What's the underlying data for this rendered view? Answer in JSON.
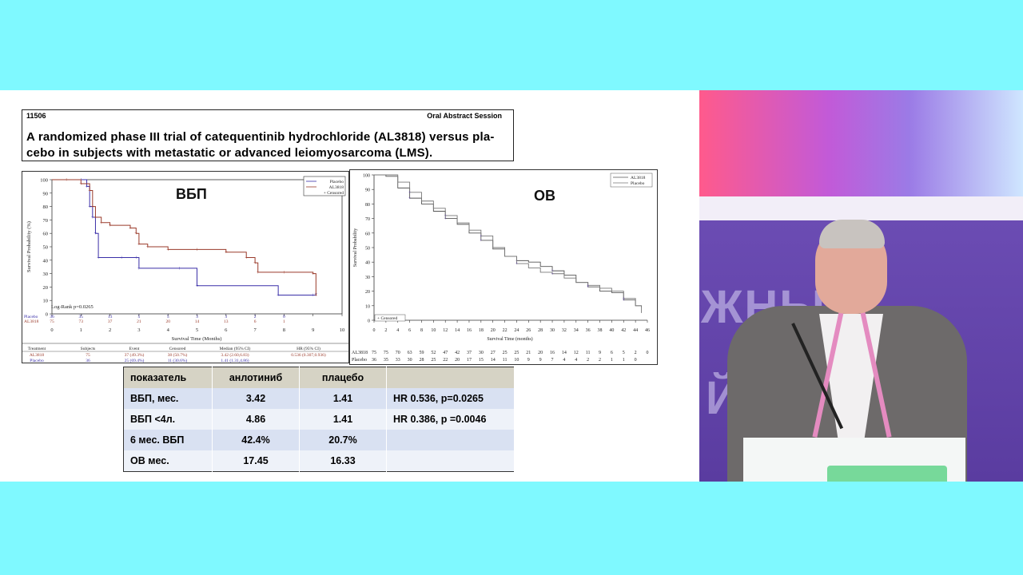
{
  "abstract": {
    "number": "11506",
    "session": "Oral Abstract Session",
    "title": "A randomized phase III trial of catequentinib hydrochloride (AL3818) versus pla-cebo in subjects with metastatic or advanced leiomyosarcoma (LMS)."
  },
  "pfs_panel": {
    "label": "ВБП",
    "legend": [
      "Placebo",
      "AL3818",
      "+ Censored"
    ],
    "logrank": "Log-Rank p=0.0265",
    "xlabel": "Survival Time (Months)",
    "ylabel": "Survival Probability (%)",
    "risk_rows": [
      {
        "name": "Placebo",
        "values": [
          "36",
          "35",
          "13",
          "5",
          "5",
          "3",
          "3",
          "2",
          "0"
        ]
      },
      {
        "name": "AL3818",
        "values": [
          "75",
          "73",
          "37",
          "21",
          "20",
          "14",
          "13",
          "6",
          "1"
        ]
      }
    ],
    "summary_headers": [
      "Treatment",
      "Subjects",
      "Event",
      "Censored",
      "Median (95% CI)",
      "HR (95% CI)"
    ],
    "summary_rows": [
      [
        "AL3818",
        "75",
        "37 (49.3%)",
        "38 (50.7%)",
        "3.42 (2.60,6.83)",
        "0.536 (0.307,0.936)"
      ],
      [
        "Placebo",
        "36",
        "25 (69.4%)",
        "11 (30.6%)",
        "1.41 (1.31,4.86)",
        ""
      ]
    ]
  },
  "os_panel": {
    "label": "ОВ",
    "legend": [
      "AL3818",
      "Placebo"
    ],
    "censored_label": "+ Censored",
    "xlabel": "Survival Time (months)",
    "ylabel": "Survival Probability",
    "risk_rows": [
      {
        "name": "AL3818",
        "values": [
          "75",
          "75",
          "70",
          "63",
          "59",
          "52",
          "47",
          "42",
          "37",
          "30",
          "27",
          "25",
          "25",
          "21",
          "20",
          "16",
          "14",
          "12",
          "11",
          "9",
          "6",
          "5",
          "2",
          "0"
        ]
      },
      {
        "name": "Placebo",
        "values": [
          "36",
          "35",
          "33",
          "30",
          "28",
          "25",
          "22",
          "20",
          "17",
          "15",
          "14",
          "11",
          "10",
          "9",
          "9",
          "7",
          "4",
          "4",
          "2",
          "2",
          "1",
          "1",
          "0"
        ]
      }
    ]
  },
  "table": {
    "headers": [
      "показатель",
      "анлотиниб",
      "плацебо",
      ""
    ],
    "rows": [
      [
        "ВБП, мес.",
        "3.42",
        "1.41",
        "HR 0.536, p=0.0265"
      ],
      [
        "ВБП <4л.",
        "4.86",
        "1.41",
        "HR 0.386, p =0.0046"
      ],
      [
        "6 мес. ВБП",
        "42.4%",
        "20.7%",
        ""
      ],
      [
        "ОВ мес.",
        "17.45",
        "16.33",
        ""
      ]
    ]
  },
  "stage": {
    "text1": "ЖНЫ",
    "text2": "Й"
  },
  "chart_data": [
    {
      "type": "line",
      "title": "ВБП",
      "xlabel": "Survival Time (Months)",
      "ylabel": "Survival Probability (%)",
      "xlim": [
        0,
        10
      ],
      "ylim": [
        0,
        100
      ],
      "x_ticks": [
        0,
        1,
        2,
        3,
        4,
        5,
        6,
        7,
        8,
        9,
        10
      ],
      "y_ticks": [
        0,
        10,
        20,
        30,
        40,
        50,
        60,
        70,
        80,
        90,
        100
      ],
      "series": [
        {
          "name": "Placebo",
          "color": "#3a2fa8",
          "x": [
            0,
            1.0,
            1.2,
            1.3,
            1.4,
            1.5,
            1.6,
            2.4,
            2.9,
            3.0,
            4.4,
            5.0,
            7.8,
            9.0,
            9.1
          ],
          "y": [
            100,
            100,
            95,
            80,
            72,
            60,
            42,
            42,
            42,
            34,
            34,
            21,
            14,
            14,
            15
          ]
        },
        {
          "name": "AL3818",
          "color": "#9a3a2a",
          "x": [
            0,
            0.5,
            1.0,
            1.3,
            1.4,
            1.5,
            1.7,
            2.0,
            2.7,
            2.9,
            3.0,
            3.3,
            4.0,
            5.0,
            6.0,
            6.7,
            7.0,
            7.1,
            8.0,
            9.0,
            9.1
          ],
          "y": [
            100,
            100,
            97,
            92,
            80,
            72,
            68,
            66,
            64,
            60,
            52,
            50,
            48,
            48,
            46,
            42,
            38,
            31,
            31,
            30,
            14
          ]
        }
      ]
    },
    {
      "type": "line",
      "title": "ОВ",
      "xlabel": "Survival Time (months)",
      "ylabel": "Survival Probability",
      "xlim": [
        0,
        46
      ],
      "ylim": [
        0,
        100
      ],
      "x_ticks": [
        0,
        2,
        4,
        6,
        8,
        10,
        12,
        14,
        16,
        18,
        20,
        22,
        24,
        26,
        28,
        30,
        32,
        34,
        36,
        38,
        40,
        42,
        44,
        46
      ],
      "y_ticks": [
        0,
        10,
        20,
        30,
        40,
        50,
        60,
        70,
        80,
        90,
        100
      ],
      "series": [
        {
          "name": "AL3818",
          "color": "#555555",
          "x": [
            0,
            2,
            4,
            6,
            8,
            10,
            12,
            14,
            16,
            18,
            20,
            22,
            24,
            26,
            28,
            30,
            32,
            34,
            36,
            38,
            40,
            42,
            44,
            45
          ],
          "y": [
            100,
            99,
            91,
            84,
            80,
            75,
            70,
            66,
            60,
            55,
            49,
            44,
            41,
            40,
            37,
            34,
            31,
            26,
            23,
            20,
            19,
            14,
            10,
            9
          ]
        },
        {
          "name": "Placebo",
          "color": "#777777",
          "x": [
            0,
            2,
            4,
            6,
            8,
            10,
            12,
            14,
            16,
            18,
            20,
            22,
            24,
            26,
            28,
            30,
            32,
            34,
            36,
            38,
            40,
            42,
            44,
            45
          ],
          "y": [
            100,
            100,
            95,
            88,
            82,
            77,
            72,
            67,
            62,
            58,
            50,
            44,
            39,
            36,
            33,
            32,
            29,
            26,
            24,
            22,
            20,
            15,
            10,
            5
          ]
        }
      ]
    }
  ]
}
